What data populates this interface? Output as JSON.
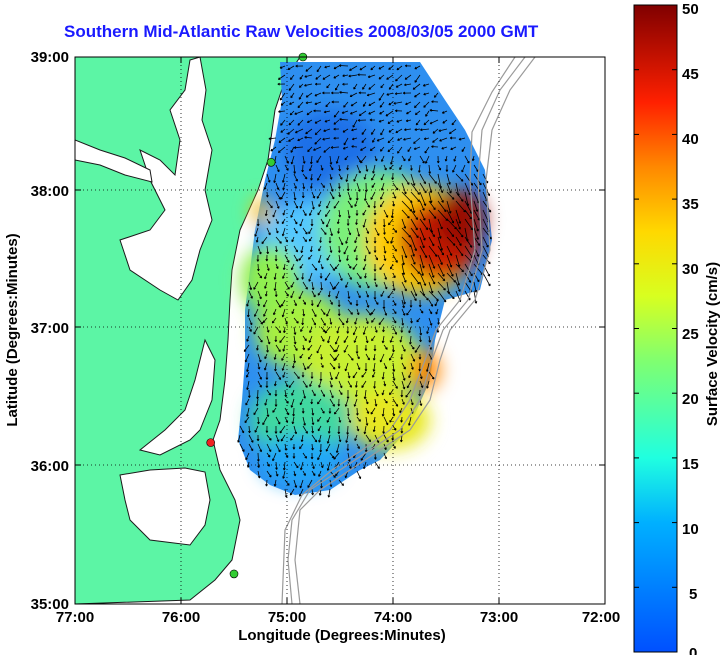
{
  "title": "Southern Mid-Atlantic Raw Velocities 2008/03/05 2000 GMT",
  "x_axis": {
    "label": "Longitude (Degrees:Minutes)",
    "ticks": [
      "77:00",
      "76:00",
      "75:00",
      "74:00",
      "73:00",
      "72:00"
    ]
  },
  "y_axis": {
    "label": "Latitude (Degrees:Minutes)",
    "ticks": [
      "39:00",
      "38:00",
      "37:00",
      "36:00",
      "35:00"
    ]
  },
  "colorbar": {
    "label": "Surface Velocity (cm/s)",
    "ticks": [
      "50",
      "45",
      "40",
      "35",
      "30",
      "25",
      "20",
      "15",
      "10",
      "5",
      "0"
    ],
    "min": 0,
    "max": 50
  },
  "colors": {
    "land": "#5cf5a5",
    "coast": "#1a1a1a",
    "bathymetry": "#9a9a9a",
    "title": "#1a1aff"
  },
  "sites": [
    {
      "lon": -74.85,
      "lat": 39.0,
      "color": "#33cc33"
    },
    {
      "lon": -75.15,
      "lat": 38.23,
      "color": "#33cc33"
    },
    {
      "lon": -75.72,
      "lat": 36.18,
      "color": "#ee2222"
    },
    {
      "lon": -75.5,
      "lat": 35.22,
      "color": "#33cc33"
    }
  ]
}
